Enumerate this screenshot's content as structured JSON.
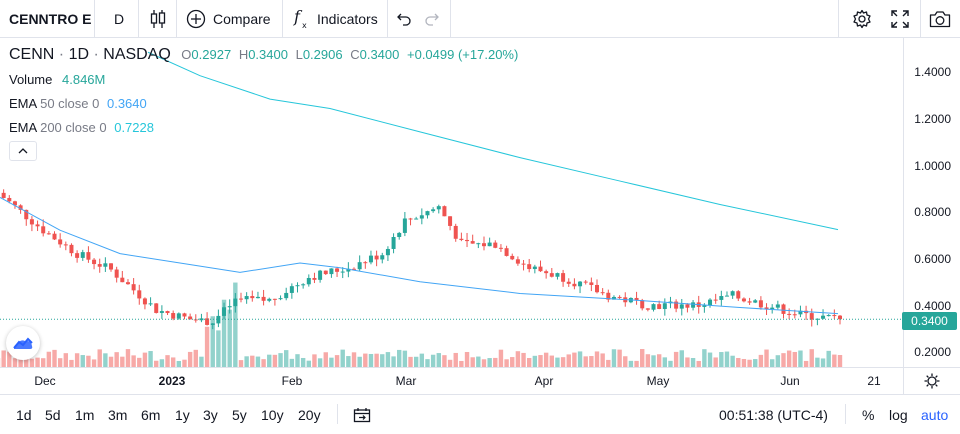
{
  "toolbar": {
    "symbol": "CENNTRO E",
    "interval": "D",
    "compare_label": "Compare",
    "indicators_label": "Indicators",
    "icons": [
      "candles-icon",
      "plus-circle-icon",
      "fx-icon",
      "undo-icon",
      "redo-icon",
      "settings-icon",
      "fullscreen-icon",
      "camera-icon"
    ]
  },
  "legend": {
    "ticker": "CENN",
    "interval": "1D",
    "exchange": "NASDAQ",
    "o_label": "O",
    "o_value": "0.2927",
    "h_label": "H",
    "h_value": "0.3400",
    "l_label": "L",
    "l_value": "0.2906",
    "c_label": "C",
    "c_value": "0.3400",
    "change": "+0.0499 (+17.20%)",
    "volume_label": "Volume",
    "volume_value": "4.846M",
    "ema50_label": "EMA",
    "ema50_params": "50 close 0",
    "ema50_value": "0.3640",
    "ema200_label": "EMA",
    "ema200_params": "200 close 0",
    "ema200_value": "0.7228"
  },
  "price_axis": {
    "ticks": [
      "1.4000",
      "1.2000",
      "1.0000",
      "0.8000",
      "0.6000",
      "0.4000",
      "0.2000"
    ],
    "last_price": "0.3400"
  },
  "time_axis": {
    "labels": [
      "Dec",
      "2023",
      "Feb",
      "Mar",
      "Apr",
      "May",
      "Jun",
      "21"
    ]
  },
  "bottombar": {
    "ranges": [
      "1d",
      "5d",
      "1m",
      "3m",
      "6m",
      "1y",
      "3y",
      "5y",
      "10y",
      "20y"
    ],
    "clock": "00:51:38 (UTC-4)",
    "percent": "%",
    "log": "log",
    "auto": "auto"
  },
  "colors": {
    "up": "#26a69a",
    "down": "#ef5350",
    "ema50": "#42a5f5",
    "ema200": "#26c6da",
    "accent": "#2962ff"
  },
  "chart_data": {
    "type": "candlestick",
    "ylim": [
      0.15,
      1.5
    ],
    "series": [
      {
        "name": "EMA 50 close 0",
        "y_start": 0.86,
        "y_end": 0.364
      },
      {
        "name": "EMA 200 close 0",
        "y_start": 1.48,
        "y_end": 0.7228
      }
    ],
    "last_close": 0.34
  }
}
